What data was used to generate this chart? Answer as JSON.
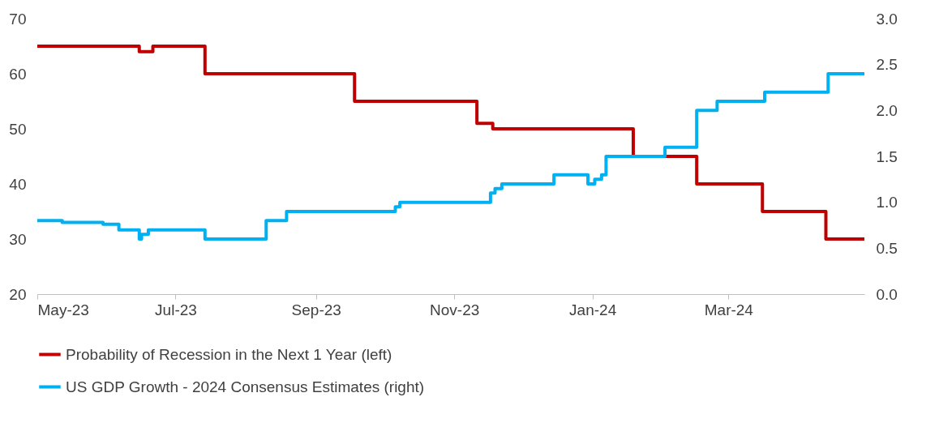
{
  "chart_data": {
    "type": "step",
    "xlim": [
      "2023-05-01",
      "2024-04-30"
    ],
    "xticks": [
      {
        "value": "2023-05-01",
        "label": "May-23"
      },
      {
        "value": "2023-07-01",
        "label": "Jul-23"
      },
      {
        "value": "2023-09-01",
        "label": "Sep-23"
      },
      {
        "value": "2023-11-01",
        "label": "Nov-23"
      },
      {
        "value": "2024-01-01",
        "label": "Jan-24"
      },
      {
        "value": "2024-03-01",
        "label": "Mar-24"
      }
    ],
    "ylim": [
      20,
      70
    ],
    "yticks": [
      20,
      30,
      40,
      50,
      60,
      70
    ],
    "y2lim": [
      0,
      3
    ],
    "y2ticks": [
      {
        "value": 0,
        "label": "0.0"
      },
      {
        "value": 0.5,
        "label": "0.5"
      },
      {
        "value": 1,
        "label": "1.0"
      },
      {
        "value": 1.5,
        "label": "1.5"
      },
      {
        "value": 2,
        "label": "2.0"
      },
      {
        "value": 2.5,
        "label": "2.5"
      },
      {
        "value": 3,
        "label": "3.0"
      }
    ],
    "grid": false,
    "legend": "bottom",
    "marker": "none",
    "line_style": "solid",
    "series": [
      {
        "name": "Probability of Recession in the Next 1 Year (left)",
        "color": "#c00000",
        "x": [
          "2023-05-01",
          "2023-06-15",
          "2023-06-21",
          "2023-07-14",
          "2023-09-18",
          "2023-11-11",
          "2023-11-18",
          "2024-01-19",
          "2024-02-16",
          "2024-03-16",
          "2024-04-13",
          "2024-04-30"
        ],
        "values": [
          65,
          64,
          65,
          60,
          55,
          51,
          50,
          45,
          40,
          35,
          30,
          30
        ]
      },
      {
        "name": "US GDP Growth - 2024 Consensus Estimates (right)",
        "color": "#00b0f0",
        "axis": "y2",
        "x": [
          "2023-05-01",
          "2023-05-12",
          "2023-05-30",
          "2023-06-06",
          "2023-06-15",
          "2023-06-16",
          "2023-06-19",
          "2023-07-14",
          "2023-08-10",
          "2023-08-19",
          "2023-10-06",
          "2023-10-08",
          "2023-11-17",
          "2023-11-19",
          "2023-11-22",
          "2023-12-15",
          "2023-12-30",
          "2024-01-02",
          "2024-01-05",
          "2024-01-07",
          "2024-01-19",
          "2024-02-02",
          "2024-02-16",
          "2024-02-25",
          "2024-03-17",
          "2024-04-14",
          "2024-04-30"
        ],
        "values": [
          0.8,
          0.78,
          0.76,
          0.7,
          0.6,
          0.65,
          0.7,
          0.6,
          0.8,
          0.9,
          0.95,
          1.0,
          1.1,
          1.15,
          1.2,
          1.3,
          1.2,
          1.25,
          1.3,
          1.5,
          1.5,
          1.6,
          2.0,
          2.1,
          2.2,
          2.4,
          2.4
        ]
      }
    ]
  }
}
